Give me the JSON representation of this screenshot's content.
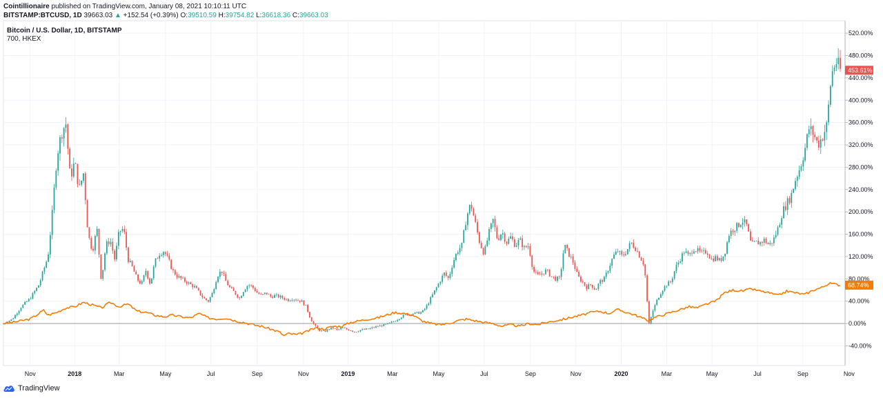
{
  "header": {
    "publisher": "Cointillionaire",
    "published_text": "published on TradingView.com, January 08, 2021 10:10:11 UTC",
    "symbol": "BITSTAMP:BTCUSD, 1D",
    "last": "39663.03",
    "change": "+152.54 (+0.39%)",
    "o_label": "O:",
    "o_value": "39510.59",
    "h_label": "H:",
    "h_value": "39754.82",
    "l_label": "L:",
    "l_value": "36618.36",
    "c_label": "C:",
    "c_value": "39663.03"
  },
  "legend": {
    "main": "Bitcoin / U.S. Dollar, 1D, BITSTAMP",
    "compare": "700, HKEX"
  },
  "colors": {
    "up": "#26a69a",
    "down": "#ef5350",
    "compare": "#f57c00",
    "zero_line": "#9598a1",
    "grid": "#f0f3fa"
  },
  "footer": {
    "brand": "TradingView",
    "logo_icon": "tradingview-cloud-icon"
  },
  "chart_data": {
    "type": "line",
    "y_unit": "percent change",
    "ylim": [
      -60,
      540
    ],
    "y_ticks": [
      "520.00%",
      "480.00%",
      "440.00%",
      "400.00%",
      "360.00%",
      "320.00%",
      "280.00%",
      "240.00%",
      "200.00%",
      "160.00%",
      "120.00%",
      "80.00%",
      "40.00%",
      "0.00%",
      "-40.00%"
    ],
    "y_tick_values": [
      520,
      480,
      440,
      400,
      360,
      320,
      280,
      240,
      200,
      160,
      120,
      80,
      40,
      0,
      -40
    ],
    "x_ticks": [
      {
        "label": "Nov",
        "bold": false,
        "t": 0.03
      },
      {
        "label": "2018",
        "bold": true,
        "t": 0.08
      },
      {
        "label": "Mar",
        "bold": false,
        "t": 0.13
      },
      {
        "label": "May",
        "bold": false,
        "t": 0.182
      },
      {
        "label": "Jul",
        "bold": false,
        "t": 0.233
      },
      {
        "label": "Sep",
        "bold": false,
        "t": 0.285
      },
      {
        "label": "Nov",
        "bold": false,
        "t": 0.337
      },
      {
        "label": "2019",
        "bold": true,
        "t": 0.387
      },
      {
        "label": "Mar",
        "bold": false,
        "t": 0.437
      },
      {
        "label": "May",
        "bold": false,
        "t": 0.489
      },
      {
        "label": "Jul",
        "bold": false,
        "t": 0.54
      },
      {
        "label": "Sep",
        "bold": false,
        "t": 0.592
      },
      {
        "label": "Nov",
        "bold": false,
        "t": 0.643
      },
      {
        "label": "2020",
        "bold": true,
        "t": 0.694
      },
      {
        "label": "Mar",
        "bold": false,
        "t": 0.745
      },
      {
        "label": "May",
        "bold": false,
        "t": 0.796
      },
      {
        "label": "Jul",
        "bold": false,
        "t": 0.847
      },
      {
        "label": "Sep",
        "bold": false,
        "t": 0.898
      },
      {
        "label": "Nov",
        "bold": false,
        "t": 0.95
      }
    ],
    "series": [
      {
        "name": "Bitcoin / U.S. Dollar, 1D, BITSTAMP",
        "style": "candles",
        "last_label": "453.61%",
        "last_value": 453.61,
        "points": [
          [
            0,
            0
          ],
          [
            0.01,
            8
          ],
          [
            0.02,
            30
          ],
          [
            0.03,
            45
          ],
          [
            0.04,
            70
          ],
          [
            0.05,
            120
          ],
          [
            0.055,
            200
          ],
          [
            0.06,
            300
          ],
          [
            0.065,
            340
          ],
          [
            0.07,
            360
          ],
          [
            0.075,
            260
          ],
          [
            0.08,
            290
          ],
          [
            0.085,
            240
          ],
          [
            0.09,
            270
          ],
          [
            0.095,
            160
          ],
          [
            0.1,
            130
          ],
          [
            0.105,
            170
          ],
          [
            0.11,
            75
          ],
          [
            0.115,
            140
          ],
          [
            0.12,
            150
          ],
          [
            0.125,
            115
          ],
          [
            0.13,
            165
          ],
          [
            0.135,
            170
          ],
          [
            0.14,
            115
          ],
          [
            0.145,
            100
          ],
          [
            0.15,
            80
          ],
          [
            0.155,
            70
          ],
          [
            0.16,
            95
          ],
          [
            0.165,
            70
          ],
          [
            0.17,
            110
          ],
          [
            0.175,
            125
          ],
          [
            0.18,
            130
          ],
          [
            0.185,
            115
          ],
          [
            0.19,
            95
          ],
          [
            0.195,
            85
          ],
          [
            0.2,
            80
          ],
          [
            0.205,
            75
          ],
          [
            0.21,
            70
          ],
          [
            0.215,
            65
          ],
          [
            0.22,
            55
          ],
          [
            0.225,
            45
          ],
          [
            0.23,
            40
          ],
          [
            0.235,
            55
          ],
          [
            0.24,
            85
          ],
          [
            0.245,
            95
          ],
          [
            0.25,
            75
          ],
          [
            0.255,
            62
          ],
          [
            0.26,
            55
          ],
          [
            0.265,
            45
          ],
          [
            0.27,
            60
          ],
          [
            0.275,
            70
          ],
          [
            0.28,
            65
          ],
          [
            0.285,
            55
          ],
          [
            0.29,
            50
          ],
          [
            0.295,
            55
          ],
          [
            0.3,
            48
          ],
          [
            0.305,
            50
          ],
          [
            0.31,
            48
          ],
          [
            0.315,
            45
          ],
          [
            0.32,
            42
          ],
          [
            0.325,
            45
          ],
          [
            0.33,
            42
          ],
          [
            0.335,
            40
          ],
          [
            0.34,
            30
          ],
          [
            0.345,
            8
          ],
          [
            0.35,
            -5
          ],
          [
            0.355,
            -12
          ],
          [
            0.36,
            -15
          ],
          [
            0.365,
            -10
          ],
          [
            0.37,
            -8
          ],
          [
            0.375,
            -12
          ],
          [
            0.38,
            -8
          ],
          [
            0.385,
            -10
          ],
          [
            0.39,
            -12
          ],
          [
            0.395,
            -15
          ],
          [
            0.4,
            -12
          ],
          [
            0.41,
            -10
          ],
          [
            0.42,
            -5
          ],
          [
            0.43,
            -2
          ],
          [
            0.44,
            5
          ],
          [
            0.45,
            15
          ],
          [
            0.46,
            18
          ],
          [
            0.47,
            20
          ],
          [
            0.475,
            30
          ],
          [
            0.48,
            45
          ],
          [
            0.485,
            60
          ],
          [
            0.49,
            75
          ],
          [
            0.495,
            90
          ],
          [
            0.5,
            80
          ],
          [
            0.505,
            110
          ],
          [
            0.51,
            130
          ],
          [
            0.515,
            140
          ],
          [
            0.52,
            190
          ],
          [
            0.525,
            215
          ],
          [
            0.53,
            180
          ],
          [
            0.535,
            145
          ],
          [
            0.54,
            125
          ],
          [
            0.545,
            160
          ],
          [
            0.55,
            185
          ],
          [
            0.555,
            150
          ],
          [
            0.56,
            165
          ],
          [
            0.565,
            145
          ],
          [
            0.57,
            155
          ],
          [
            0.575,
            140
          ],
          [
            0.58,
            150
          ],
          [
            0.585,
            135
          ],
          [
            0.59,
            140
          ],
          [
            0.595,
            95
          ],
          [
            0.6,
            85
          ],
          [
            0.605,
            90
          ],
          [
            0.61,
            95
          ],
          [
            0.615,
            85
          ],
          [
            0.62,
            80
          ],
          [
            0.625,
            80
          ],
          [
            0.63,
            140
          ],
          [
            0.635,
            125
          ],
          [
            0.64,
            110
          ],
          [
            0.645,
            85
          ],
          [
            0.65,
            75
          ],
          [
            0.655,
            65
          ],
          [
            0.66,
            70
          ],
          [
            0.665,
            60
          ],
          [
            0.67,
            75
          ],
          [
            0.675,
            80
          ],
          [
            0.68,
            100
          ],
          [
            0.685,
            120
          ],
          [
            0.69,
            130
          ],
          [
            0.695,
            120
          ],
          [
            0.7,
            130
          ],
          [
            0.705,
            145
          ],
          [
            0.71,
            135
          ],
          [
            0.715,
            120
          ],
          [
            0.72,
            105
          ],
          [
            0.725,
            -2
          ],
          [
            0.73,
            25
          ],
          [
            0.735,
            45
          ],
          [
            0.74,
            60
          ],
          [
            0.745,
            70
          ],
          [
            0.75,
            75
          ],
          [
            0.755,
            100
          ],
          [
            0.76,
            115
          ],
          [
            0.765,
            130
          ],
          [
            0.77,
            120
          ],
          [
            0.775,
            135
          ],
          [
            0.78,
            130
          ],
          [
            0.785,
            125
          ],
          [
            0.79,
            130
          ],
          [
            0.795,
            115
          ],
          [
            0.8,
            118
          ],
          [
            0.805,
            112
          ],
          [
            0.81,
            125
          ],
          [
            0.815,
            160
          ],
          [
            0.82,
            170
          ],
          [
            0.825,
            175
          ],
          [
            0.83,
            185
          ],
          [
            0.835,
            175
          ],
          [
            0.84,
            140
          ],
          [
            0.845,
            145
          ],
          [
            0.85,
            145
          ],
          [
            0.855,
            150
          ],
          [
            0.86,
            140
          ],
          [
            0.865,
            150
          ],
          [
            0.87,
            170
          ],
          [
            0.875,
            200
          ],
          [
            0.88,
            215
          ],
          [
            0.885,
            230
          ],
          [
            0.89,
            260
          ],
          [
            0.895,
            280
          ],
          [
            0.9,
            310
          ],
          [
            0.905,
            350
          ],
          [
            0.91,
            340
          ],
          [
            0.915,
            320
          ],
          [
            0.92,
            335
          ],
          [
            0.925,
            355
          ],
          [
            0.93,
            445
          ],
          [
            0.935,
            470
          ],
          [
            0.94,
            453.61
          ]
        ]
      },
      {
        "name": "700, HKEX",
        "style": "line",
        "last_label": "68.74%",
        "last_value": 68.74,
        "points": [
          [
            0,
            0
          ],
          [
            0.01,
            2
          ],
          [
            0.02,
            5
          ],
          [
            0.03,
            8
          ],
          [
            0.04,
            18
          ],
          [
            0.045,
            24
          ],
          [
            0.05,
            15
          ],
          [
            0.06,
            20
          ],
          [
            0.07,
            28
          ],
          [
            0.08,
            30
          ],
          [
            0.09,
            38
          ],
          [
            0.1,
            33
          ],
          [
            0.11,
            28
          ],
          [
            0.12,
            38
          ],
          [
            0.13,
            30
          ],
          [
            0.14,
            35
          ],
          [
            0.15,
            22
          ],
          [
            0.16,
            20
          ],
          [
            0.17,
            15
          ],
          [
            0.18,
            12
          ],
          [
            0.19,
            15
          ],
          [
            0.2,
            12
          ],
          [
            0.21,
            10
          ],
          [
            0.22,
            18
          ],
          [
            0.23,
            10
          ],
          [
            0.24,
            8
          ],
          [
            0.25,
            10
          ],
          [
            0.26,
            5
          ],
          [
            0.27,
            2
          ],
          [
            0.28,
            -2
          ],
          [
            0.29,
            -5
          ],
          [
            0.3,
            -10
          ],
          [
            0.31,
            -15
          ],
          [
            0.315,
            -22
          ],
          [
            0.32,
            -18
          ],
          [
            0.33,
            -20
          ],
          [
            0.34,
            -15
          ],
          [
            0.35,
            -8
          ],
          [
            0.36,
            -10
          ],
          [
            0.37,
            -5
          ],
          [
            0.38,
            -5
          ],
          [
            0.39,
            2
          ],
          [
            0.4,
            5
          ],
          [
            0.41,
            8
          ],
          [
            0.42,
            10
          ],
          [
            0.43,
            15
          ],
          [
            0.44,
            20
          ],
          [
            0.45,
            18
          ],
          [
            0.46,
            15
          ],
          [
            0.47,
            5
          ],
          [
            0.48,
            0
          ],
          [
            0.49,
            -2
          ],
          [
            0.5,
            0
          ],
          [
            0.51,
            5
          ],
          [
            0.52,
            8
          ],
          [
            0.53,
            5
          ],
          [
            0.54,
            2
          ],
          [
            0.55,
            0
          ],
          [
            0.56,
            -5
          ],
          [
            0.57,
            -2
          ],
          [
            0.58,
            -5
          ],
          [
            0.59,
            0
          ],
          [
            0.6,
            -2
          ],
          [
            0.61,
            2
          ],
          [
            0.62,
            5
          ],
          [
            0.63,
            8
          ],
          [
            0.64,
            12
          ],
          [
            0.65,
            15
          ],
          [
            0.66,
            20
          ],
          [
            0.67,
            22
          ],
          [
            0.68,
            18
          ],
          [
            0.69,
            25
          ],
          [
            0.7,
            20
          ],
          [
            0.71,
            15
          ],
          [
            0.72,
            8
          ],
          [
            0.725,
            5
          ],
          [
            0.73,
            10
          ],
          [
            0.74,
            15
          ],
          [
            0.75,
            20
          ],
          [
            0.76,
            25
          ],
          [
            0.77,
            30
          ],
          [
            0.78,
            28
          ],
          [
            0.79,
            35
          ],
          [
            0.8,
            40
          ],
          [
            0.81,
            55
          ],
          [
            0.82,
            60
          ],
          [
            0.83,
            58
          ],
          [
            0.84,
            62
          ],
          [
            0.85,
            58
          ],
          [
            0.86,
            55
          ],
          [
            0.87,
            50
          ],
          [
            0.88,
            58
          ],
          [
            0.89,
            55
          ],
          [
            0.9,
            52
          ],
          [
            0.91,
            60
          ],
          [
            0.92,
            65
          ],
          [
            0.925,
            70
          ],
          [
            0.93,
            72
          ],
          [
            0.935,
            70
          ],
          [
            0.94,
            68.74
          ]
        ]
      }
    ]
  }
}
